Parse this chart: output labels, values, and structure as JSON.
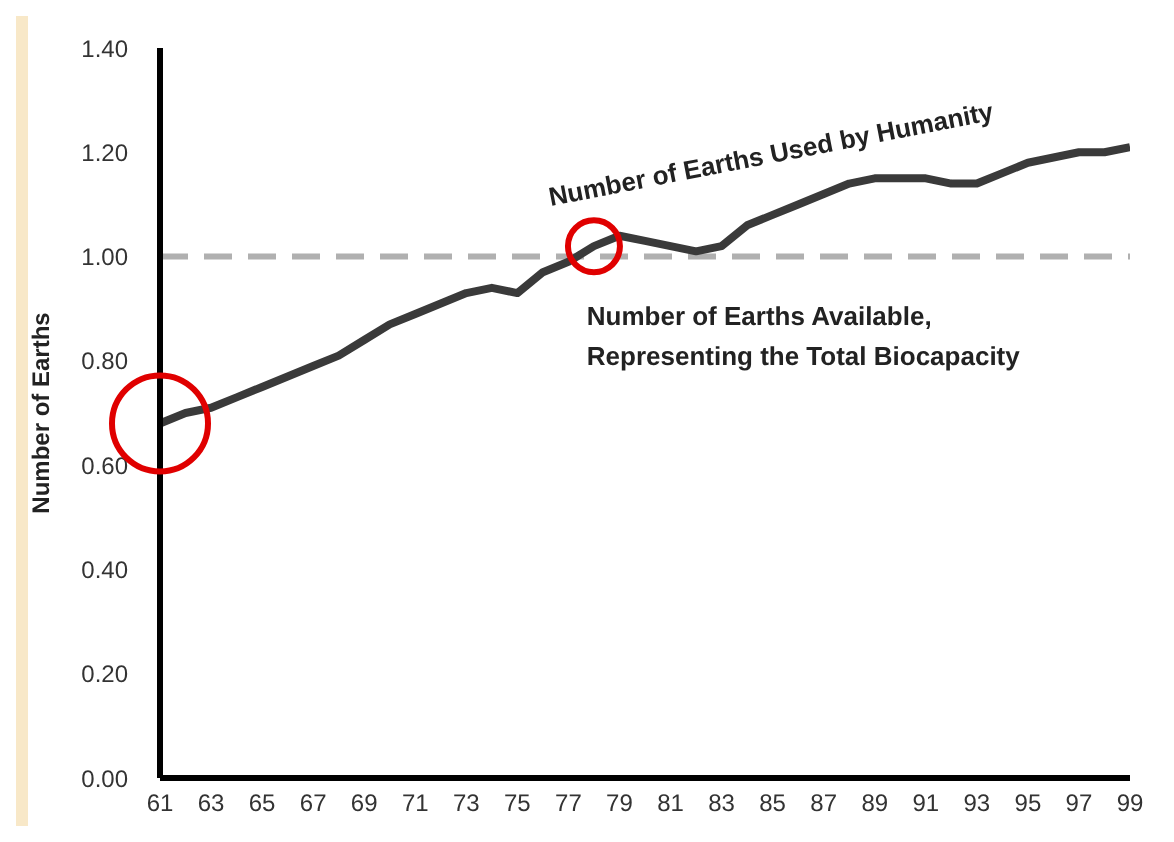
{
  "chart_data": {
    "type": "line",
    "ylabel": "Number of Earths",
    "x": [
      61,
      62,
      63,
      64,
      65,
      66,
      67,
      68,
      69,
      70,
      71,
      72,
      73,
      74,
      75,
      76,
      77,
      78,
      79,
      80,
      81,
      82,
      83,
      84,
      85,
      86,
      87,
      88,
      89,
      90,
      91,
      92,
      93,
      94,
      95,
      96,
      97,
      98,
      99
    ],
    "series": [
      {
        "name": "Number of Earths Used by Humanity",
        "color": "#3a3a3a",
        "values": [
          0.68,
          0.7,
          0.71,
          0.73,
          0.75,
          0.77,
          0.79,
          0.81,
          0.84,
          0.87,
          0.89,
          0.91,
          0.93,
          0.94,
          0.93,
          0.97,
          0.99,
          1.02,
          1.04,
          1.03,
          1.02,
          1.01,
          1.02,
          1.06,
          1.08,
          1.1,
          1.12,
          1.14,
          1.15,
          1.15,
          1.15,
          1.14,
          1.14,
          1.16,
          1.18,
          1.19,
          1.2,
          1.2,
          1.21
        ]
      }
    ],
    "xlim": [
      61,
      99
    ],
    "xticks": [
      61,
      63,
      65,
      67,
      69,
      71,
      73,
      75,
      77,
      79,
      81,
      83,
      85,
      87,
      89,
      91,
      93,
      95,
      97,
      99
    ],
    "ylim": [
      0,
      1.4
    ],
    "yticks": [
      {
        "value": 0,
        "label": "0.00"
      },
      {
        "value": 0.2,
        "label": "0.20"
      },
      {
        "value": 0.4,
        "label": "0.40"
      },
      {
        "value": 0.6,
        "label": "0.60"
      },
      {
        "value": 0.8,
        "label": "0.80"
      },
      {
        "value": 1,
        "label": "1.00"
      },
      {
        "value": 1.2,
        "label": "1.20"
      },
      {
        "value": 1.4,
        "label": "1.40"
      }
    ],
    "ref_lines": [
      {
        "axis": "y",
        "value": 1,
        "label": "Number of Earths Available,\nRepresenting the Total Biocapacity",
        "color": "#b0b0b0",
        "line_style": "dashed"
      }
    ],
    "grid": false,
    "legend": false
  }
}
